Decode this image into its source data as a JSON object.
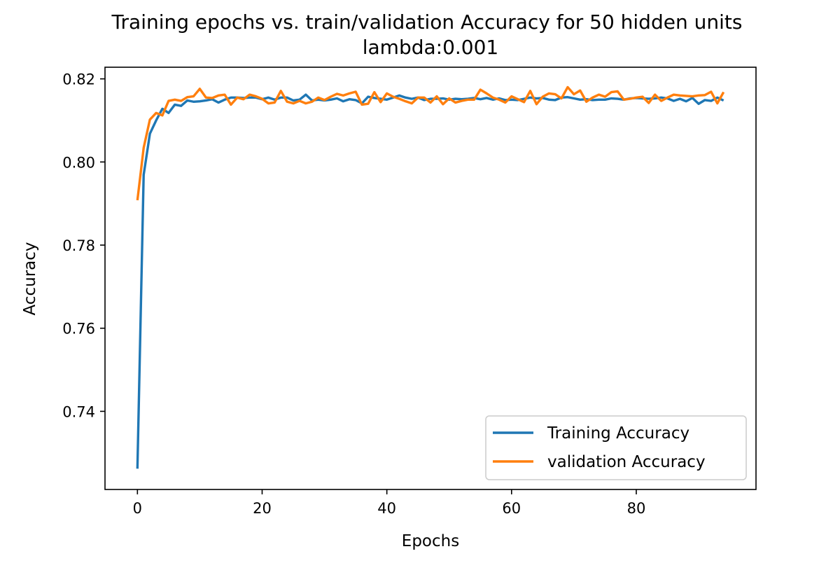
{
  "chart_data": {
    "type": "line",
    "title": "Training epochs vs. train/validation Accuracy for 50 hidden units",
    "subtitle": "lambda:0.001",
    "xlabel": "Epochs",
    "ylabel": "Accuracy",
    "xlim": [
      -5.2,
      99.2
    ],
    "ylim": [
      0.7212,
      0.8228
    ],
    "xticks": [
      0,
      20,
      40,
      60,
      80
    ],
    "xtick_labels": [
      "0",
      "20",
      "40",
      "60",
      "80"
    ],
    "yticks": [
      0.74,
      0.76,
      0.78,
      0.8,
      0.82
    ],
    "ytick_labels": [
      "0.74",
      "0.76",
      "0.78",
      "0.80",
      "0.82"
    ],
    "grid": false,
    "legend_position": "lower-right",
    "series": [
      {
        "name": "Training Accuracy",
        "color": "#1f77b4",
        "values": [
          0.7262,
          0.7969,
          0.8068,
          0.81,
          0.8128,
          0.8118,
          0.8138,
          0.8135,
          0.8148,
          0.8145,
          0.8146,
          0.8148,
          0.8151,
          0.8143,
          0.815,
          0.8155,
          0.8155,
          0.8154,
          0.8155,
          0.8155,
          0.8151,
          0.8155,
          0.815,
          0.8155,
          0.8155,
          0.8148,
          0.815,
          0.8162,
          0.8148,
          0.815,
          0.8148,
          0.815,
          0.8153,
          0.8146,
          0.8151,
          0.8149,
          0.8141,
          0.8157,
          0.8154,
          0.8152,
          0.815,
          0.8155,
          0.816,
          0.8155,
          0.8152,
          0.8155,
          0.8149,
          0.8152,
          0.8152,
          0.8153,
          0.815,
          0.8152,
          0.8151,
          0.8152,
          0.8154,
          0.8151,
          0.8154,
          0.815,
          0.8153,
          0.8149,
          0.815,
          0.8149,
          0.8152,
          0.8155,
          0.8153,
          0.8154,
          0.815,
          0.8149,
          0.8155,
          0.8156,
          0.8153,
          0.815,
          0.8151,
          0.8149,
          0.815,
          0.815,
          0.8153,
          0.8152,
          0.815,
          0.8153,
          0.8154,
          0.8153,
          0.8152,
          0.8153,
          0.8155,
          0.8153,
          0.8147,
          0.8152,
          0.8146,
          0.8154,
          0.814,
          0.8149,
          0.8147,
          0.8155,
          0.8148
        ]
      },
      {
        "name": "validation Accuracy",
        "color": "#ff7f0e",
        "values": [
          0.7908,
          0.8034,
          0.8102,
          0.8118,
          0.8112,
          0.8147,
          0.815,
          0.8147,
          0.8156,
          0.8158,
          0.8176,
          0.8155,
          0.8154,
          0.816,
          0.8162,
          0.8138,
          0.8155,
          0.8151,
          0.8162,
          0.8158,
          0.8152,
          0.8141,
          0.8143,
          0.8171,
          0.8145,
          0.8141,
          0.8147,
          0.8141,
          0.8145,
          0.8155,
          0.8149,
          0.8157,
          0.8164,
          0.816,
          0.8165,
          0.8169,
          0.8138,
          0.814,
          0.8168,
          0.8144,
          0.8165,
          0.8157,
          0.8152,
          0.8146,
          0.8141,
          0.8155,
          0.8155,
          0.8143,
          0.8158,
          0.8139,
          0.8153,
          0.8143,
          0.8147,
          0.815,
          0.815,
          0.8174,
          0.8165,
          0.8155,
          0.815,
          0.8143,
          0.8158,
          0.8151,
          0.8144,
          0.8171,
          0.8139,
          0.8157,
          0.8165,
          0.8163,
          0.8153,
          0.818,
          0.8163,
          0.8172,
          0.8145,
          0.8155,
          0.8162,
          0.8157,
          0.8168,
          0.817,
          0.815,
          0.8152,
          0.8155,
          0.8157,
          0.8142,
          0.8162,
          0.8147,
          0.8155,
          0.8162,
          0.816,
          0.8159,
          0.8158,
          0.816,
          0.8161,
          0.8169,
          0.8141,
          0.8168
        ]
      }
    ]
  }
}
